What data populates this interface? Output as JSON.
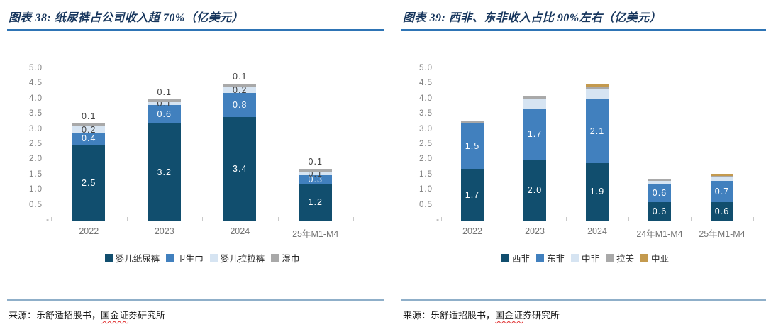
{
  "palette": {
    "title_text": "#17365D",
    "title_rule": "#2E74B5",
    "bottom_rule": "#8FAFC9",
    "axis_text": "#7F7F7F",
    "axis_line": "#C9C9C9",
    "label_dark": "#404040",
    "label_light": "#FFFFFF"
  },
  "chart_data": [
    {
      "id": "figure-38",
      "type": "bar",
      "subtype": "stacked",
      "title": "图表 38: 纸尿裤占公司收入超 70%（亿美元）",
      "unit": "亿美元",
      "categories": [
        "2022",
        "2023",
        "2024",
        "25年M1-M4"
      ],
      "series": [
        {
          "name": "婴儿纸尿裤",
          "color": "#114E6E",
          "label_style": "inside",
          "label_color": "#FFFFFF",
          "values": [
            2.5,
            3.2,
            3.4,
            1.2
          ],
          "labels": [
            "2.5",
            "3.2",
            "3.4",
            "1.2"
          ]
        },
        {
          "name": "卫生巾",
          "color": "#4180BE",
          "label_style": "inside",
          "label_color": "#FFFFFF",
          "values": [
            0.4,
            0.6,
            0.8,
            0.3
          ],
          "labels": [
            "0.4",
            "0.6",
            "0.8",
            "0.3"
          ]
        },
        {
          "name": "婴儿拉拉裤",
          "color": "#D6E4F2",
          "label_style": "inside",
          "label_color": "#404040",
          "values": [
            0.2,
            0.1,
            0.2,
            0.1
          ],
          "labels": [
            "0.2",
            "0.1",
            "0.2",
            "0.1"
          ]
        },
        {
          "name": "湿巾",
          "color": "#A9A9A9",
          "label_style": "above",
          "label_color": "#404040",
          "values": [
            0.1,
            0.1,
            0.1,
            0.1
          ],
          "labels": [
            "0.1",
            "0.1",
            "0.1",
            "0.1"
          ]
        }
      ],
      "ylim": [
        0,
        5
      ],
      "ytick_step": 0.5,
      "ytick_labels": [
        "5.0",
        "4.5",
        "4.0",
        "3.5",
        "3.0",
        "2.5",
        "2.0",
        "1.5",
        "1.0",
        "0.5",
        "-"
      ],
      "grid": false,
      "legend_position": "bottom",
      "source": {
        "prefix": "来源：乐舒适招股书，",
        "wavy": "国金证",
        "rest": "券研究所"
      }
    },
    {
      "id": "figure-39",
      "type": "bar",
      "subtype": "stacked",
      "title": "图表 39: 西非、东非收入占比 90%左右（亿美元）",
      "unit": "亿美元",
      "categories": [
        "2022",
        "2023",
        "2024",
        "24年M1-M4",
        "25年M1-M4"
      ],
      "series": [
        {
          "name": "西非",
          "color": "#114E6E",
          "label_style": "inside",
          "label_color": "#FFFFFF",
          "values": [
            1.7,
            2.0,
            1.9,
            0.6,
            0.6
          ],
          "labels": [
            "1.7",
            "2.0",
            "1.9",
            "0.6",
            "0.6"
          ]
        },
        {
          "name": "东非",
          "color": "#4180BE",
          "label_style": "inside",
          "label_color": "#FFFFFF",
          "values": [
            1.5,
            1.7,
            2.1,
            0.6,
            0.7
          ],
          "labels": [
            "1.5",
            "1.7",
            "2.1",
            "0.6",
            "0.7"
          ]
        },
        {
          "name": "中非",
          "color": "#D6E4F2",
          "label_style": "none",
          "label_color": "#404040",
          "values": [
            0.03,
            0.3,
            0.35,
            0.1,
            0.15
          ],
          "labels": [
            "",
            "",
            "",
            "",
            ""
          ]
        },
        {
          "name": "拉美",
          "color": "#A9A9A9",
          "label_style": "none",
          "label_color": "#404040",
          "values": [
            0.05,
            0.09,
            0.05,
            0.05,
            0.02
          ],
          "labels": [
            "",
            "",
            "",
            "",
            ""
          ]
        },
        {
          "name": "中亚",
          "color": "#C49A4E",
          "label_style": "none",
          "label_color": "#404040",
          "values": [
            0,
            0,
            0.08,
            0,
            0.08
          ],
          "labels": [
            "",
            "",
            "",
            "",
            ""
          ]
        }
      ],
      "ylim": [
        0,
        5
      ],
      "ytick_step": 0.5,
      "ytick_labels": [
        "5.0",
        "4.5",
        "4.0",
        "3.5",
        "3.0",
        "2.5",
        "2.0",
        "1.5",
        "1.0",
        "0.5",
        "-"
      ],
      "grid": false,
      "legend_position": "bottom",
      "source": {
        "prefix": "来源：乐舒适招股书，",
        "wavy": "国金证",
        "rest": "券研究所"
      }
    }
  ]
}
